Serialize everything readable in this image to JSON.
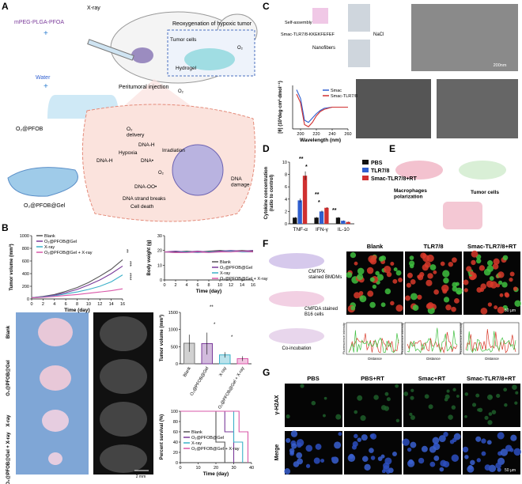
{
  "figure_labels": [
    "A",
    "B",
    "C",
    "D",
    "E",
    "F",
    "G"
  ],
  "panel_a": {
    "polymer": "mPEG-PLGA-PFOA",
    "plus": "+",
    "water": "Water",
    "emulsion": "O₂@PFOB",
    "gel": "O₂@PFOB@Gel",
    "xray": "X-ray",
    "injection": "Peritumoral injection",
    "box_title": "Reoxygenation of hypoxic tumor",
    "tumor_cells": "Tumor cells",
    "hydrogel": "Hydrogel",
    "o2": "O₂",
    "cell": {
      "delivery": [
        "O₂",
        "delivery"
      ],
      "dna_h": "DNA-H",
      "hypoxia": "Hypoxia",
      "radical": "DNA•",
      "irradiation": "Irradiation",
      "peroxyl": "DNA-OO•",
      "strand": "DNA strand breaks",
      "death": "Cell death",
      "damage": [
        "DNA",
        "damage"
      ]
    }
  },
  "panel_b": {
    "tumor_growth": {
      "type": "line",
      "xlabel": "Time (day)",
      "ylabel": [
        "Tumor volume (mm³)"
      ],
      "x": [
        0,
        2,
        4,
        6,
        8,
        10,
        12,
        14,
        16
      ],
      "xlim": [
        0,
        16
      ],
      "xticks": [
        0,
        2,
        4,
        6,
        8,
        10,
        12,
        14,
        16
      ],
      "ylim": [
        0,
        1000
      ],
      "yticks": [
        0,
        200,
        400,
        600,
        800,
        1000
      ],
      "series": [
        {
          "name": "Blank",
          "color": "#555555",
          "values": [
            20,
            40,
            70,
            120,
            180,
            260,
            360,
            470,
            620
          ]
        },
        {
          "name": "O₂@PFOB@Gel",
          "color": "#7a3a9a",
          "values": [
            20,
            35,
            60,
            100,
            150,
            220,
            300,
            400,
            520
          ]
        },
        {
          "name": "X-ray",
          "color": "#3bb0c9",
          "values": [
            20,
            30,
            50,
            80,
            110,
            150,
            200,
            270,
            380
          ]
        },
        {
          "name": "O₂@PFOB@Gel + X-ray",
          "color": "#d957a8",
          "values": [
            20,
            25,
            40,
            55,
            70,
            90,
            110,
            130,
            160
          ]
        }
      ],
      "annotations": [
        "**",
        "***",
        "****"
      ]
    },
    "body_weight": {
      "type": "line",
      "xlabel": "Time (day)",
      "ylabel": [
        "Body weight (g)"
      ],
      "x": [
        0,
        2,
        4,
        6,
        8,
        10,
        12,
        14,
        16
      ],
      "xlim": [
        0,
        16
      ],
      "xticks": [
        0,
        2,
        4,
        6,
        8,
        10,
        12,
        14,
        16
      ],
      "ylim": [
        0,
        30
      ],
      "yticks": [
        0,
        10,
        20,
        30
      ],
      "series": [
        {
          "name": "Blank",
          "color": "#555555",
          "values": [
            19,
            19,
            19.5,
            19,
            19.5,
            20,
            19.5,
            20,
            19.5
          ]
        },
        {
          "name": "O₂@PFOB@Gel",
          "color": "#7a3a9a",
          "values": [
            19,
            19.5,
            19,
            19.5,
            19,
            19.5,
            20,
            19.5,
            20
          ]
        },
        {
          "name": "X-ray",
          "color": "#3bb0c9",
          "values": [
            19,
            18.5,
            19,
            18.5,
            19,
            19,
            19.5,
            19,
            19
          ]
        },
        {
          "name": "O₂@PFOB@Gel + X-ray",
          "color": "#d957a8",
          "values": [
            19,
            18.5,
            18.5,
            19,
            18.5,
            19,
            19,
            19.5,
            19
          ]
        }
      ]
    },
    "photo_labels": [
      "Blank",
      "O₂@PFOB@Gel",
      "X-ray",
      "O₂@PFOB@Gel + X-ray"
    ],
    "scale_bar": "2 mm",
    "tumor_volume": {
      "type": "bar",
      "ylabel": [
        "Tumor volume (mm³)"
      ],
      "categories": [
        "Blank",
        "O₂@PFOB@Gel",
        "X-ray",
        "O₂@PFOB@Gel + X-ray"
      ],
      "values": [
        600,
        590,
        260,
        150
      ],
      "errors": [
        250,
        320,
        80,
        70
      ],
      "colors": [
        "#7a7a7a",
        "#7a3a9a",
        "#3bb0c9",
        "#d957a8"
      ],
      "ylim": [
        0,
        1500
      ],
      "yticks": [
        0,
        500,
        1000,
        1500
      ],
      "annotations": [
        "**",
        "*",
        "*"
      ]
    },
    "survival": {
      "type": "line",
      "xlabel": "Time (day)",
      "ylabel": [
        "Percent survival (%)"
      ],
      "xlim": [
        0,
        40
      ],
      "xticks": [
        0,
        10,
        20,
        30,
        40
      ],
      "ylim": [
        0,
        100
      ],
      "yticks": [
        0,
        20,
        40,
        60,
        80,
        100
      ],
      "series": [
        {
          "name": "Blank",
          "color": "#555555",
          "x": [
            0,
            20,
            20,
            25,
            25
          ],
          "values": [
            100,
            100,
            40,
            40,
            0
          ]
        },
        {
          "name": "O₂@PFOB@Gel",
          "color": "#7a3a9a",
          "x": [
            0,
            25,
            25,
            30,
            30
          ],
          "values": [
            100,
            100,
            60,
            60,
            0
          ]
        },
        {
          "name": "X-ray",
          "color": "#3bb0c9",
          "x": [
            0,
            30,
            30,
            35,
            35
          ],
          "values": [
            100,
            100,
            40,
            40,
            0
          ]
        },
        {
          "name": "O₂@PFOB@Gel + X-ray",
          "color": "#d957a8",
          "x": [
            0,
            33,
            33,
            38,
            38
          ],
          "values": [
            100,
            100,
            60,
            60,
            0
          ]
        }
      ]
    }
  },
  "panel_c": {
    "peptide": "Smac-TLR7/8-KKEKFEFEF",
    "assembly": "Self-assembly",
    "fibers": "Nanofibers",
    "salt": "NaCl",
    "scale_bar": "200nm",
    "cd": {
      "type": "line",
      "xlabel": "Wavelength (nm)",
      "ylabel": [
        "[θ] (10³deg·cm²·dmol⁻¹)"
      ],
      "x": [
        195,
        200,
        205,
        210,
        215,
        220,
        225,
        230,
        240,
        250,
        260
      ],
      "xlim": [
        190,
        260
      ],
      "xticks": [
        200,
        220,
        240,
        260
      ],
      "ylim": [
        -10,
        10
      ],
      "series": [
        {
          "name": "Smac",
          "color": "#2f5fd0",
          "values": [
            8,
            4,
            -6,
            -7,
            -5,
            -3,
            -1.5,
            -0.5,
            0,
            0,
            0
          ]
        },
        {
          "name": "Smac-TLR7/8",
          "color": "#d03030",
          "values": [
            6,
            2,
            -8,
            -9,
            -7,
            -4,
            -2,
            -1,
            0,
            0,
            0
          ]
        }
      ]
    }
  },
  "panel_d": {
    "type": "grouped_bar",
    "ylabel": [
      "Cytokine concentration",
      "(ratio to control)"
    ],
    "categories": [
      "TNF-α",
      "IFN-γ",
      "IL-10"
    ],
    "ylim": [
      0,
      10
    ],
    "yticks": [
      0,
      2,
      4,
      6,
      8,
      10
    ],
    "series": [
      {
        "name": "PBS",
        "color": "#111111",
        "values": [
          1,
          1,
          1
        ],
        "errors": [
          0.1,
          0.1,
          0.1
        ]
      },
      {
        "name": "TLR7/8",
        "color": "#2f5fd0",
        "values": [
          3.8,
          2.0,
          0.5
        ],
        "errors": [
          0.3,
          0.15,
          0.05
        ]
      },
      {
        "name": "Smac-TLR7/8+RT",
        "color": "#d03030",
        "values": [
          7.8,
          2.6,
          0.3
        ],
        "errors": [
          0.7,
          0.1,
          0.05
        ]
      }
    ],
    "annotations": [
      "**",
      "*",
      "**",
      "*",
      "**"
    ]
  },
  "panel_e": {
    "macrophages": [
      "Macrophages",
      "polarization"
    ],
    "tumor_cells": "Tumor cells"
  },
  "panel_f": {
    "bmdm": [
      "CMTPX",
      "stained BMDMs"
    ],
    "b16": [
      "CMFDA stained",
      "B16 cells"
    ],
    "coinc": "Co-incubation",
    "groups": [
      "Blank",
      "TLR7/8",
      "Smac-TLR7/8+RT"
    ],
    "scale_bar": "50 µm",
    "ylabel": "Fluorescence intensity",
    "xlabel": "Distance"
  },
  "panel_g": {
    "groups": [
      "PBS",
      "PBS+RT",
      "Smac+RT",
      "Smac-TLR7/8+RT"
    ],
    "rows": [
      "γ-H2AX",
      "Merge"
    ],
    "scale_bar": "50 µm"
  }
}
